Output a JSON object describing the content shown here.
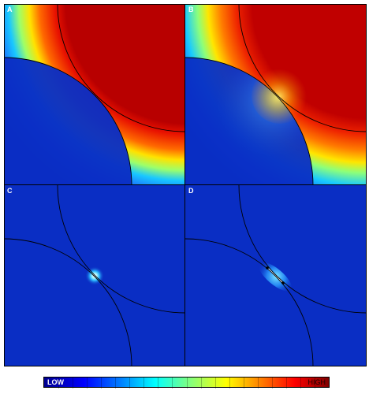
{
  "panels": [
    {
      "label": "A",
      "field": "high-low"
    },
    {
      "label": "B",
      "field": "high-low-glow"
    },
    {
      "label": "C",
      "field": "contact-point"
    },
    {
      "label": "D",
      "field": "contact-line"
    }
  ],
  "colorbar": {
    "low_label": "LOW",
    "high_label": "HIGH",
    "colormap": "jet",
    "colors": [
      "#00008f",
      "#0000ff",
      "#0080ff",
      "#00ffff",
      "#80ff80",
      "#ffff00",
      "#ff8000",
      "#ff0000",
      "#800000"
    ]
  }
}
